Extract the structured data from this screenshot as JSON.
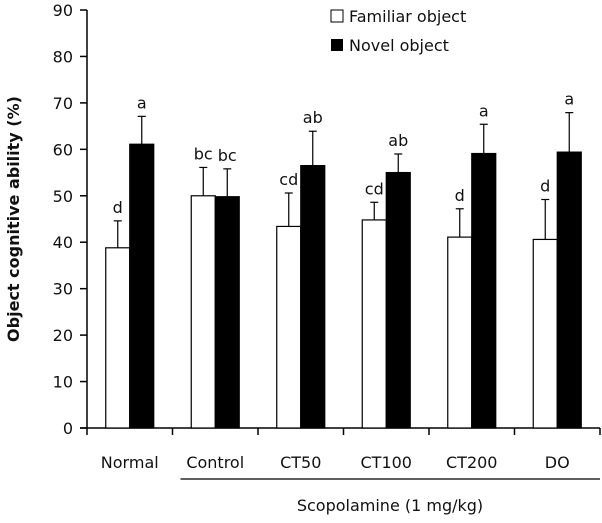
{
  "chart_data": {
    "type": "bar",
    "title": "",
    "ylabel": "Object cognitive ability (%)",
    "xlabel": "Scopolamine (1 mg/kg)",
    "ylim": [
      0,
      90
    ],
    "yticks": [
      0,
      10,
      20,
      30,
      40,
      50,
      60,
      70,
      80,
      90
    ],
    "categories": [
      "Normal",
      "Control",
      "CT50",
      "CT100",
      "CT200",
      "DO"
    ],
    "bracket_groups": [
      "Control",
      "CT50",
      "CT100",
      "CT200",
      "DO"
    ],
    "legend_position": "top-right",
    "series": [
      {
        "name": "Familiar object",
        "color": "#ffffff",
        "values": [
          38.8,
          50.0,
          43.4,
          44.8,
          41.1,
          40.6
        ],
        "errors": [
          5.8,
          6.1,
          7.2,
          3.8,
          6.1,
          8.6
        ],
        "labels": [
          "d",
          "bc",
          "cd",
          "cd",
          "d",
          "d"
        ]
      },
      {
        "name": "Novel object",
        "color": "#000000",
        "values": [
          61.1,
          49.8,
          56.5,
          55.0,
          59.1,
          59.4
        ],
        "errors": [
          6.0,
          6.0,
          7.4,
          4.0,
          6.3,
          8.5
        ],
        "labels": [
          "a",
          "bc",
          "ab",
          "ab",
          "a",
          "a"
        ]
      }
    ]
  }
}
